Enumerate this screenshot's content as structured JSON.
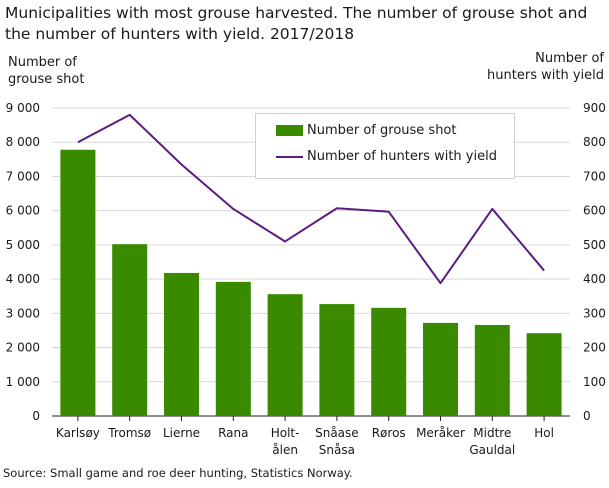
{
  "title": "Municipalities with most grouse harvested. The number of grouse shot and the number of hunters with yield. 2017/2018",
  "ylabel_left": "Number of\ngrouse shot",
  "ylabel_right": "Number of\nhunters with yield",
  "source": "Source: Small game and roe deer hunting, Statistics Norway.",
  "colors": {
    "bar": "#3a8a00",
    "line": "#5c1c7e",
    "grid": "#d9d9d9"
  },
  "chart_data": {
    "type": "bar",
    "categories": [
      "Karlsøy",
      "Tromsø",
      "Lierne",
      "Rana",
      "Holt-\nålen",
      "Snåase\nSnåsa",
      "Røros",
      "Meråker",
      "Midtre\nGauldal",
      "Hol"
    ],
    "series": [
      {
        "name": "Number of grouse shot",
        "type": "bar",
        "axis": "left",
        "values": [
          7780,
          5020,
          4180,
          3920,
          3560,
          3270,
          3160,
          2720,
          2660,
          2420
        ]
      },
      {
        "name": "Number of hunters with yield",
        "type": "line",
        "axis": "right",
        "values": [
          800,
          880,
          735,
          605,
          510,
          607,
          597,
          388,
          605,
          425
        ]
      }
    ],
    "ylim_left": [
      0,
      9000
    ],
    "yticks_left": [
      "0",
      "1 000",
      "2 000",
      "3 000",
      "4 000",
      "5 000",
      "6 000",
      "7 000",
      "8 000",
      "9 000"
    ],
    "ylim_right": [
      0,
      900
    ],
    "yticks_right": [
      "0",
      "100",
      "200",
      "300",
      "400",
      "500",
      "600",
      "700",
      "800",
      "900"
    ],
    "grid": true,
    "legend": "top-right"
  }
}
